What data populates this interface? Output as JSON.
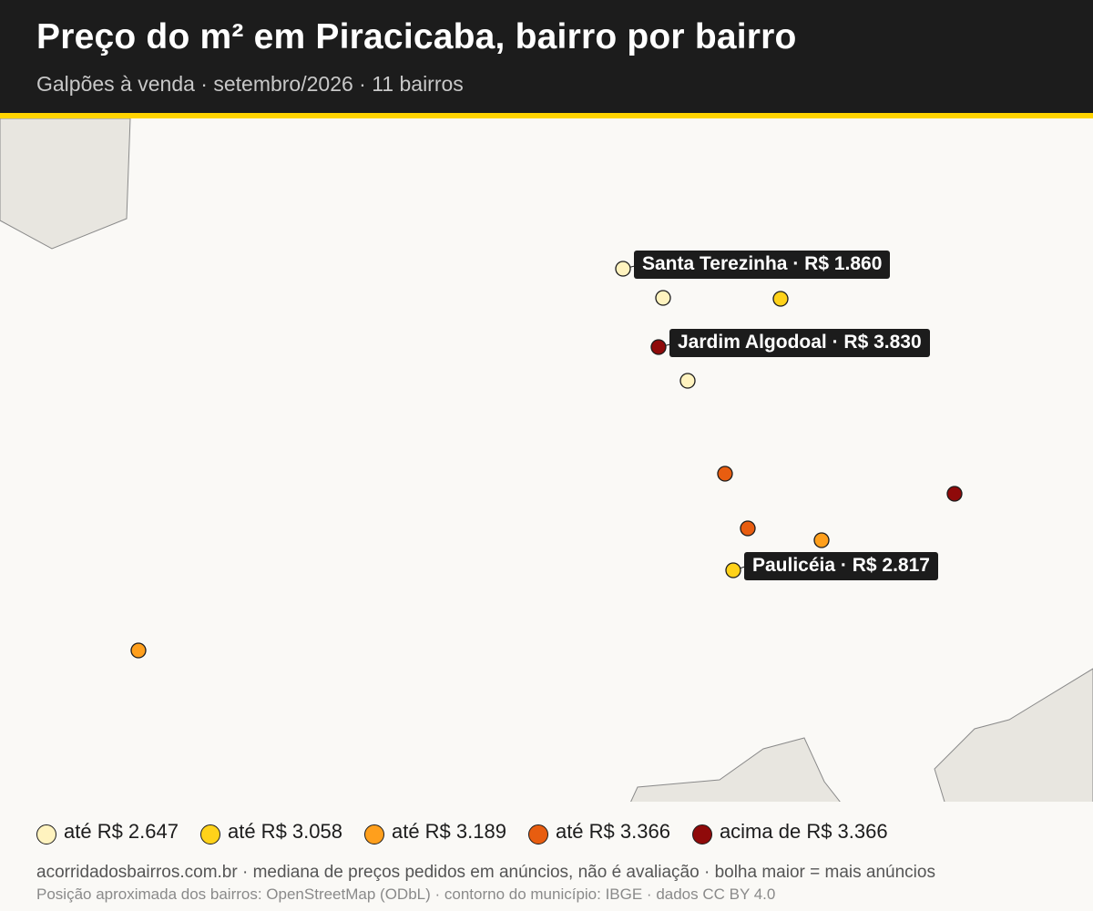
{
  "header": {
    "title": "Preço do m² em Piracicaba, bairro por bairro",
    "subtitle": "Galpões à venda · setembro/2026 · 11 bairros"
  },
  "colors": {
    "accent": "#ffd400",
    "header_bg": "#1c1c1c",
    "map_bg": "#faf9f6",
    "outside_municipality": "#e8e6e0",
    "bin1": "#fff3bf",
    "bin2": "#ffd21a",
    "bin3": "#ff9f1c",
    "bin4": "#e85d10",
    "bin5": "#8f0a0a"
  },
  "map": {
    "labeled_bairros": [
      {
        "name": "Santa Terezinha",
        "price": "R$ 1.860",
        "text": "Santa Terezinha · R$ 1.860"
      },
      {
        "name": "Jardim Algodoal",
        "price": "R$ 3.830",
        "text": "Jardim Algodoal · R$ 3.830"
      },
      {
        "name": "Paulicéia",
        "price": "R$ 2.817",
        "text": "Paulicéia · R$ 2.817"
      }
    ]
  },
  "legend": {
    "items": [
      {
        "label": "até R$ 2.647",
        "color": "#fff3bf"
      },
      {
        "label": "até R$ 3.058",
        "color": "#ffd21a"
      },
      {
        "label": "até R$ 3.189",
        "color": "#ff9f1c"
      },
      {
        "label": "até R$ 3.366",
        "color": "#e85d10"
      },
      {
        "label": "acima de R$ 3.366",
        "color": "#8f0a0a"
      }
    ]
  },
  "footer": {
    "line1": "acorridadosbairros.com.br · mediana de preços pedidos em anúncios, não é avaliação · bolha maior = mais anúncios",
    "line2": "Posição aproximada dos bairros: OpenStreetMap (ODbL) · contorno do município: IBGE · dados CC BY 4.0"
  }
}
